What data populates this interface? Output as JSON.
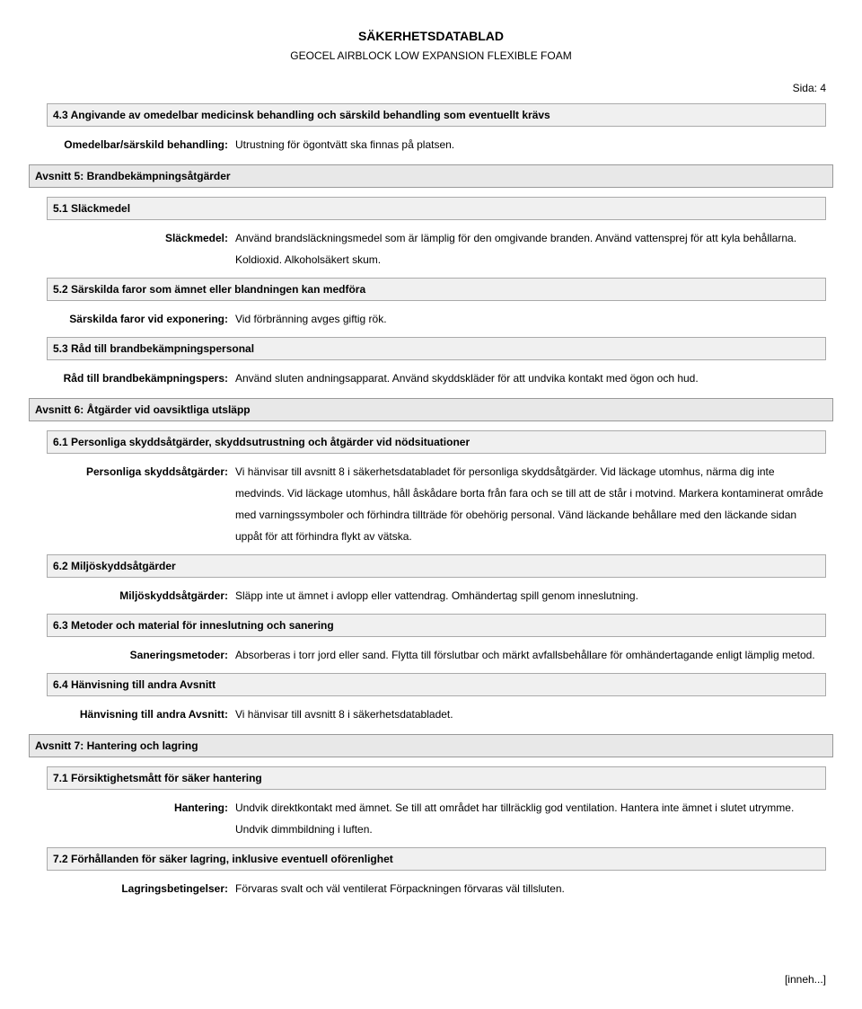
{
  "header": {
    "title": "SÄKERHETSDATABLAD",
    "subtitle": "GEOCEL AIRBLOCK LOW EXPANSION FLEXIBLE FOAM"
  },
  "page": {
    "label": "Sida:",
    "num": "4"
  },
  "s43": {
    "bar": "4.3 Angivande av omedelbar medicinsk behandling och särskild behandling som eventuellt krävs",
    "label": "Omedelbar/särskild behandling:",
    "value": "Utrustning för ögontvätt ska finnas på platsen."
  },
  "s5": {
    "bar": "Avsnitt 5: Brandbekämpningsåtgärder",
    "s51": {
      "bar": "5.1 Släckmedel",
      "label": "Släckmedel:",
      "value": "Använd brandsläckningsmedel som är lämplig för den omgivande branden. Använd vattensprej för att kyla behållarna. Koldioxid. Alkoholsäkert skum."
    },
    "s52": {
      "bar": "5.2 Särskilda faror som ämnet eller blandningen kan medföra",
      "label": "Särskilda faror vid exponering:",
      "value": "Vid förbränning avges giftig rök."
    },
    "s53": {
      "bar": "5.3 Råd till brandbekämpningspersonal",
      "label": "Råd till brandbekämpningspers:",
      "value": "Använd sluten andningsapparat. Använd skyddskläder för att undvika kontakt med ögon och hud."
    }
  },
  "s6": {
    "bar": "Avsnitt 6: Åtgärder vid oavsiktliga utsläpp",
    "s61": {
      "bar": "6.1 Personliga skyddsåtgärder, skyddsutrustning och åtgärder vid nödsituationer",
      "label": "Personliga skyddsåtgärder:",
      "value": "Vi hänvisar till avsnitt 8 i säkerhetsdatabladet för personliga skyddsåtgärder. Vid läckage utomhus, närma dig inte medvinds. Vid läckage utomhus, håll åskådare borta från fara och se till att de står i motvind. Markera kontaminerat område med varningssymboler och förhindra tillträde för obehörig personal. Vänd läckande behållare med den läckande sidan uppåt för att förhindra flykt av vätska."
    },
    "s62": {
      "bar": "6.2 Miljöskyddsåtgärder",
      "label": "Miljöskyddsåtgärder:",
      "value": "Släpp inte ut ämnet i avlopp eller vattendrag. Omhändertag spill genom inneslutning."
    },
    "s63": {
      "bar": "6.3 Metoder och material för inneslutning och sanering",
      "label": "Saneringsmetoder:",
      "value": "Absorberas i torr jord eller sand. Flytta till förslutbar och märkt avfallsbehållare för omhändertagande enligt lämplig metod."
    },
    "s64": {
      "bar": "6.4 Hänvisning till andra Avsnitt",
      "label": "Hänvisning till andra Avsnitt:",
      "value": "Vi hänvisar till avsnitt 8 i säkerhetsdatabladet."
    }
  },
  "s7": {
    "bar": "Avsnitt 7: Hantering och lagring",
    "s71": {
      "bar": "7.1 Försiktighetsmått för säker hantering",
      "label": "Hantering:",
      "value": "Undvik direktkontakt med ämnet. Se till att området har tillräcklig god ventilation. Hantera inte ämnet i slutet utrymme. Undvik dimmbildning i luften."
    },
    "s72": {
      "bar": "7.2 Förhållanden för säker lagring, inklusive eventuell oförenlighet",
      "label": "Lagringsbetingelser:",
      "value": "Förvaras svalt och väl ventilerat Förpackningen förvaras väl tillsluten."
    }
  },
  "footer": "[inneh...]"
}
